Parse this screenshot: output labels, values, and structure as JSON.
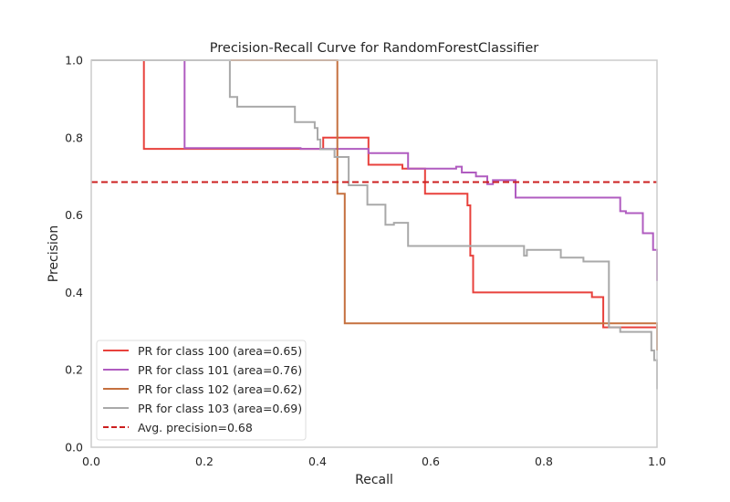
{
  "chart_data": {
    "type": "line",
    "title": "Precision-Recall Curve for RandomForestClassifier",
    "xlabel": "Recall",
    "ylabel": "Precision",
    "xlim": [
      0.0,
      1.0
    ],
    "ylim": [
      0.0,
      1.0
    ],
    "xticks": [
      "0.0",
      "0.2",
      "0.4",
      "0.6",
      "0.8",
      "1.0"
    ],
    "yticks": [
      "0.0",
      "0.2",
      "0.4",
      "0.6",
      "0.8",
      "1.0"
    ],
    "grid": false,
    "legend_position": "lower-left",
    "series": [
      {
        "name": "PR for class 100 (area=0.65)",
        "color": "#e8413c",
        "points": [
          [
            0.0,
            1.0
          ],
          [
            0.093,
            1.0
          ],
          [
            0.093,
            0.771
          ],
          [
            0.41,
            0.771
          ],
          [
            0.41,
            0.8
          ],
          [
            0.49,
            0.8
          ],
          [
            0.49,
            0.73
          ],
          [
            0.55,
            0.73
          ],
          [
            0.55,
            0.72
          ],
          [
            0.59,
            0.72
          ],
          [
            0.59,
            0.655
          ],
          [
            0.665,
            0.655
          ],
          [
            0.665,
            0.625
          ],
          [
            0.67,
            0.625
          ],
          [
            0.67,
            0.495
          ],
          [
            0.675,
            0.495
          ],
          [
            0.675,
            0.4
          ],
          [
            0.885,
            0.4
          ],
          [
            0.885,
            0.388
          ],
          [
            0.905,
            0.388
          ],
          [
            0.905,
            0.31
          ],
          [
            1.0,
            0.31
          ]
        ]
      },
      {
        "name": "PR for class 101 (area=0.76)",
        "color": "#b05cc0",
        "points": [
          [
            0.0,
            1.0
          ],
          [
            0.165,
            1.0
          ],
          [
            0.165,
            0.773
          ],
          [
            0.37,
            0.773
          ],
          [
            0.37,
            0.771
          ],
          [
            0.49,
            0.771
          ],
          [
            0.49,
            0.76
          ],
          [
            0.56,
            0.76
          ],
          [
            0.56,
            0.72
          ],
          [
            0.645,
            0.72
          ],
          [
            0.645,
            0.725
          ],
          [
            0.655,
            0.725
          ],
          [
            0.655,
            0.71
          ],
          [
            0.68,
            0.71
          ],
          [
            0.68,
            0.7
          ],
          [
            0.7,
            0.7
          ],
          [
            0.7,
            0.68
          ],
          [
            0.71,
            0.68
          ],
          [
            0.71,
            0.69
          ],
          [
            0.75,
            0.69
          ],
          [
            0.75,
            0.645
          ],
          [
            0.935,
            0.645
          ],
          [
            0.935,
            0.61
          ],
          [
            0.945,
            0.61
          ],
          [
            0.945,
            0.605
          ],
          [
            0.975,
            0.605
          ],
          [
            0.975,
            0.553
          ],
          [
            0.993,
            0.553
          ],
          [
            0.993,
            0.51
          ],
          [
            1.0,
            0.51
          ],
          [
            1.0,
            0.43
          ]
        ]
      },
      {
        "name": "PR for class 102 (area=0.62)",
        "color": "#c5703f",
        "points": [
          [
            0.0,
            1.0
          ],
          [
            0.435,
            1.0
          ],
          [
            0.435,
            0.655
          ],
          [
            0.448,
            0.655
          ],
          [
            0.448,
            0.32
          ],
          [
            1.0,
            0.32
          ],
          [
            1.0,
            0.25
          ]
        ]
      },
      {
        "name": "PR for class 103 (area=0.69)",
        "color": "#a9a9a9",
        "points": [
          [
            0.0,
            1.0
          ],
          [
            0.245,
            1.0
          ],
          [
            0.245,
            0.905
          ],
          [
            0.258,
            0.905
          ],
          [
            0.258,
            0.88
          ],
          [
            0.36,
            0.88
          ],
          [
            0.36,
            0.84
          ],
          [
            0.395,
            0.84
          ],
          [
            0.395,
            0.825
          ],
          [
            0.4,
            0.825
          ],
          [
            0.4,
            0.795
          ],
          [
            0.405,
            0.795
          ],
          [
            0.405,
            0.77
          ],
          [
            0.43,
            0.77
          ],
          [
            0.43,
            0.75
          ],
          [
            0.455,
            0.75
          ],
          [
            0.455,
            0.677
          ],
          [
            0.488,
            0.677
          ],
          [
            0.488,
            0.627
          ],
          [
            0.52,
            0.627
          ],
          [
            0.52,
            0.575
          ],
          [
            0.535,
            0.575
          ],
          [
            0.535,
            0.58
          ],
          [
            0.56,
            0.58
          ],
          [
            0.56,
            0.52
          ],
          [
            0.765,
            0.52
          ],
          [
            0.765,
            0.495
          ],
          [
            0.77,
            0.495
          ],
          [
            0.77,
            0.51
          ],
          [
            0.83,
            0.51
          ],
          [
            0.83,
            0.49
          ],
          [
            0.87,
            0.49
          ],
          [
            0.87,
            0.48
          ],
          [
            0.915,
            0.48
          ],
          [
            0.915,
            0.31
          ],
          [
            0.935,
            0.31
          ],
          [
            0.935,
            0.298
          ],
          [
            0.99,
            0.298
          ],
          [
            0.99,
            0.25
          ],
          [
            0.995,
            0.25
          ],
          [
            0.995,
            0.225
          ],
          [
            1.0,
            0.225
          ],
          [
            1.0,
            0.15
          ]
        ]
      }
    ],
    "reference_lines": [
      {
        "name": "Avg. precision=0.68",
        "orientation": "horizontal",
        "y": 0.685,
        "color": "#cc1f1f",
        "style": "dashed"
      }
    ]
  }
}
